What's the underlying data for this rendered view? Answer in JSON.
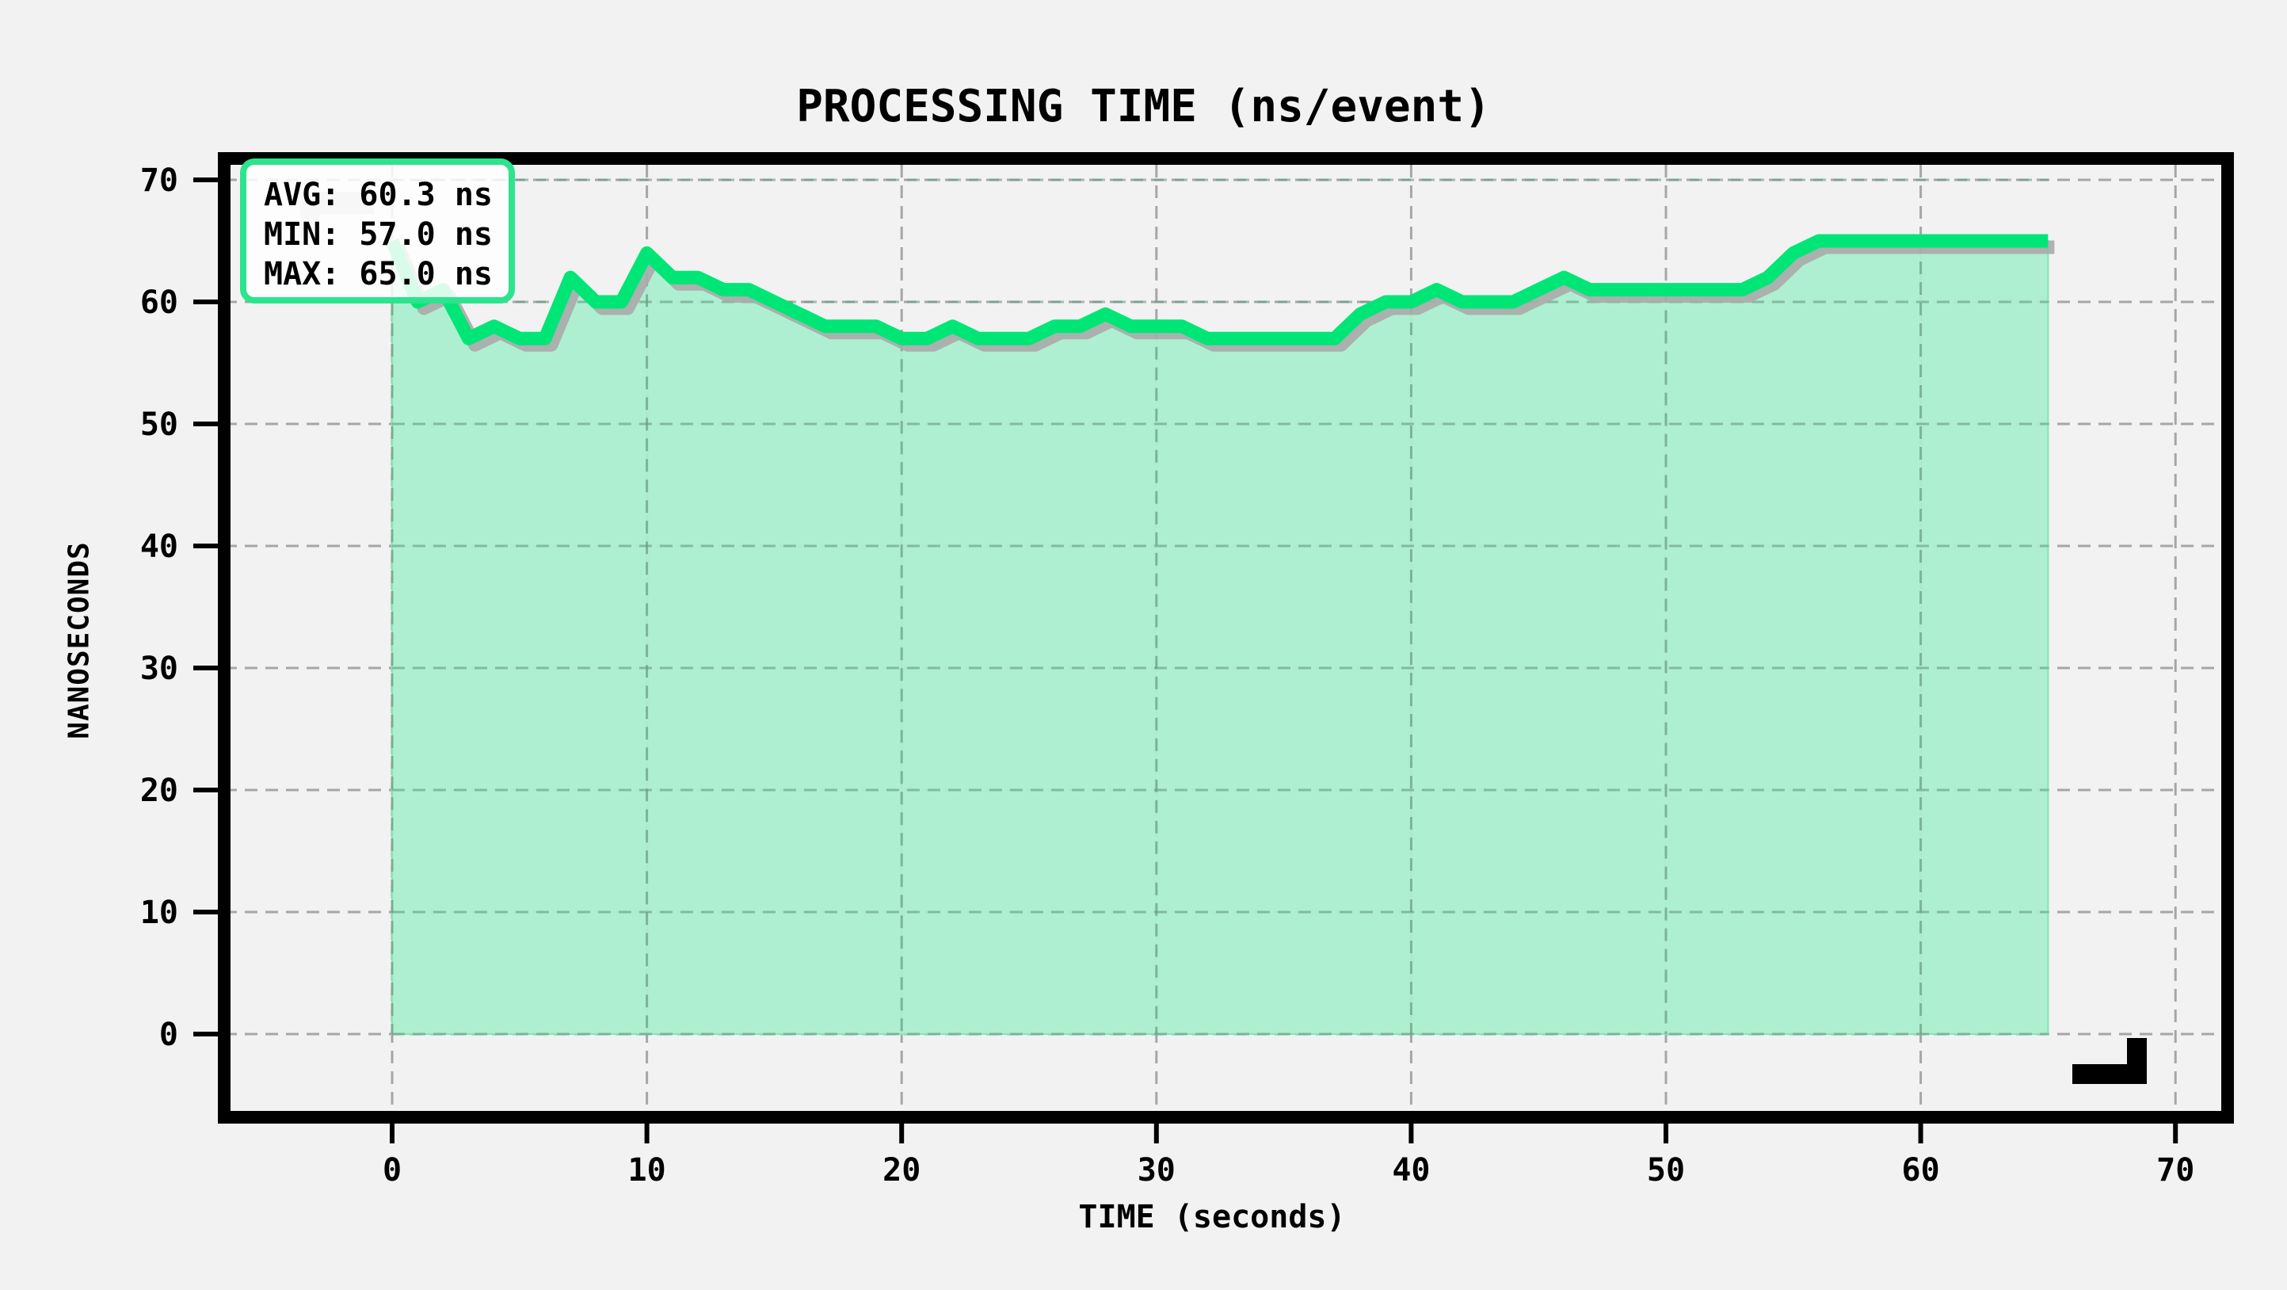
{
  "chart_data": {
    "type": "area",
    "title": "PROCESSING TIME (ns/event)",
    "xlabel": "TIME (seconds)",
    "ylabel": "NANOSECONDS",
    "xlim": [
      -7,
      72
    ],
    "ylim": [
      -7,
      72
    ],
    "xticks": [
      0,
      10,
      20,
      30,
      40,
      50,
      60,
      70
    ],
    "yticks": [
      0,
      10,
      20,
      30,
      40,
      50,
      60,
      70
    ],
    "grid": true,
    "series": [
      {
        "name": "processing_time_ns",
        "color": "#00e676",
        "fill_color": "#aaeecf",
        "x": [
          0,
          1,
          2,
          3,
          4,
          5,
          6,
          7,
          8,
          9,
          10,
          11,
          12,
          13,
          14,
          15,
          16,
          17,
          18,
          19,
          20,
          21,
          22,
          23,
          24,
          25,
          26,
          27,
          28,
          29,
          30,
          31,
          32,
          33,
          34,
          35,
          36,
          37,
          38,
          39,
          40,
          41,
          42,
          43,
          44,
          45,
          46,
          47,
          48,
          49,
          50,
          51,
          52,
          53,
          54,
          55,
          56,
          57,
          58,
          59,
          60,
          61,
          62,
          63,
          64,
          65
        ],
        "values": [
          65,
          60,
          61,
          57,
          58,
          57,
          57,
          62,
          60,
          60,
          64,
          62,
          62,
          61,
          61,
          60,
          59,
          58,
          58,
          58,
          57,
          57,
          58,
          57,
          57,
          57,
          58,
          58,
          59,
          58,
          58,
          58,
          57,
          57,
          57,
          57,
          57,
          57,
          59,
          60,
          60,
          61,
          60,
          60,
          60,
          61,
          62,
          61,
          61,
          61,
          61,
          61,
          61,
          61,
          62,
          64,
          65,
          65,
          65,
          65,
          65,
          65,
          65,
          65,
          65,
          65
        ]
      }
    ],
    "annotations": {
      "stats_box": [
        "AVG: 60.3 ns",
        "MIN: 57.0 ns",
        "MAX: 65.0 ns"
      ]
    },
    "legend_position": "upper left"
  },
  "stats": {
    "avg_label": "AVG: 60.3 ns",
    "min_label": "MIN: 57.0 ns",
    "max_label": "MAX: 65.0 ns"
  },
  "colors": {
    "background": "#f2f2f2",
    "line": "#00e676",
    "fill": "#aaeecf",
    "legend_border": "#2de38e",
    "shadow": "#aaaaaa",
    "grid": "#a6a6a6"
  }
}
